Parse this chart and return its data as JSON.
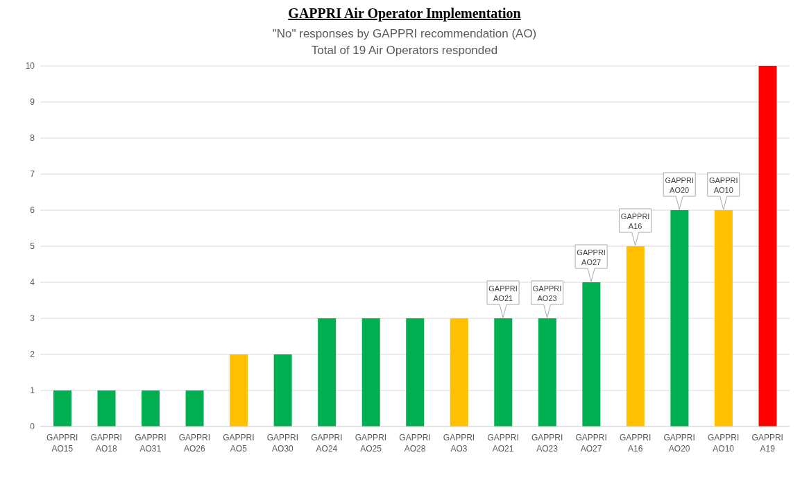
{
  "chart_data": {
    "type": "bar",
    "title": "GAPPRI Air Operator Implementation",
    "subtitle": "\"No\" responses by GAPPRI recommendation (AO)\nTotal of 19 Air Operators responded",
    "categories": [
      "GAPPRI AO15",
      "GAPPRI AO18",
      "GAPPRI AO31",
      "GAPPRI AO26",
      "GAPPRI AO5",
      "GAPPRI AO30",
      "GAPPRI AO24",
      "GAPPRI AO25",
      "GAPPRI AO28",
      "GAPPRI AO3",
      "GAPPRI AO21",
      "GAPPRI AO23",
      "GAPPRI AO27",
      "GAPPRI A16",
      "GAPPRI AO20",
      "GAPPRI AO10",
      "GAPPRI A19"
    ],
    "values": [
      1,
      1,
      1,
      1,
      2,
      2,
      3,
      3,
      3,
      3,
      3,
      3,
      4,
      5,
      6,
      6,
      10
    ],
    "colors": [
      "#00b050",
      "#00b050",
      "#00b050",
      "#00b050",
      "#ffc000",
      "#00b050",
      "#00b050",
      "#00b050",
      "#00b050",
      "#ffc000",
      "#00b050",
      "#00b050",
      "#00b050",
      "#ffc000",
      "#00b050",
      "#ffc000",
      "#ff0000"
    ],
    "ylim": [
      0,
      10
    ],
    "yticks": [
      0,
      1,
      2,
      3,
      4,
      5,
      6,
      7,
      8,
      9,
      10
    ],
    "grid": "y",
    "legend": false,
    "annotations": [
      {
        "text": "GAPPRI AO21",
        "x": "GAPPRI AO21",
        "y": 3
      },
      {
        "text": "GAPPRI AO23",
        "x": "GAPPRI AO23",
        "y": 3
      },
      {
        "text": "GAPPRI AO27",
        "x": "GAPPRI AO27",
        "y": 4
      },
      {
        "text": "GAPPRI A16",
        "x": "GAPPRI A16",
        "y": 5
      },
      {
        "text": "GAPPRI AO20",
        "x": "GAPPRI AO20",
        "y": 6
      },
      {
        "text": "GAPPRI AO10",
        "x": "GAPPRI AO10",
        "y": 6
      }
    ]
  }
}
